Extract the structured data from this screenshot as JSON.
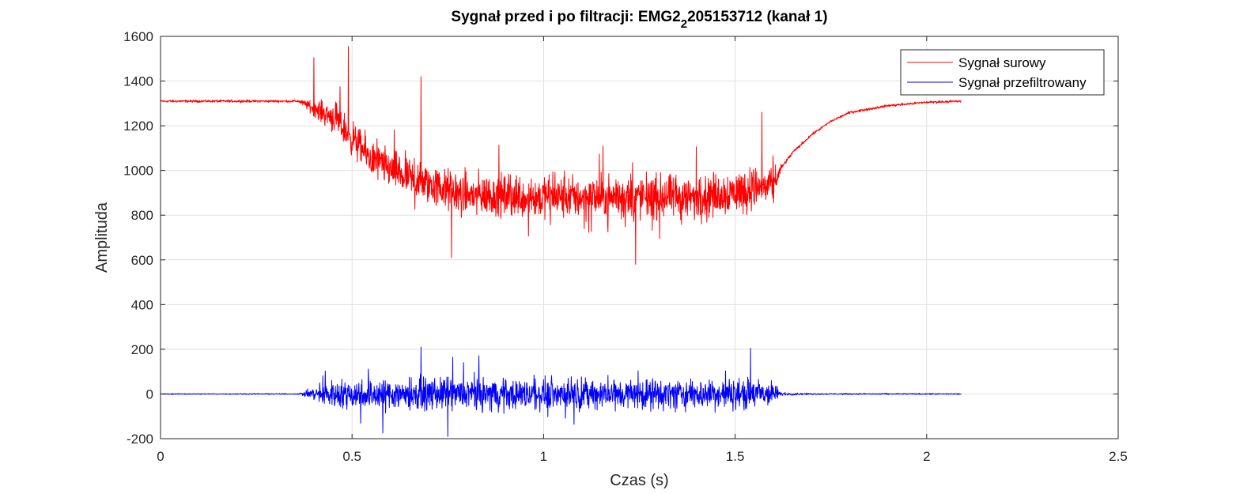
{
  "chart_data": {
    "type": "line",
    "title": {
      "main": "Sygnał przed i po filtracji: EMG2",
      "subscript": "2",
      "rest": "205153712 (kanał 1)"
    },
    "xlabel": "Czas (s)",
    "ylabel": "Amplituda",
    "xlim": [
      0,
      2.5
    ],
    "ylim": [
      -200,
      1600
    ],
    "xticks": [
      0,
      0.5,
      1,
      1.5,
      2,
      2.5
    ],
    "xtick_labels": [
      "0",
      "0.5",
      "1",
      "1.5",
      "2",
      "2.5"
    ],
    "yticks": [
      -200,
      0,
      200,
      400,
      600,
      800,
      1000,
      1200,
      1400,
      1600
    ],
    "ytick_labels": [
      "-200",
      "0",
      "200",
      "400",
      "600",
      "800",
      "1000",
      "1200",
      "1400",
      "1600"
    ],
    "grid": true,
    "legend_position": "top-right",
    "series": [
      {
        "name": "Sygnał surowy",
        "color": "#ff0000",
        "envelope": {
          "x": [
            0,
            0.36,
            0.45,
            0.55,
            0.65,
            0.8,
            1.0,
            1.2,
            1.4,
            1.55,
            1.6,
            1.62,
            1.65,
            1.7,
            1.75,
            1.8,
            1.9,
            2.0,
            2.09
          ],
          "baseline": [
            1310,
            1310,
            1240,
            1050,
            960,
            890,
            880,
            880,
            880,
            920,
            930,
            1010,
            1080,
            1160,
            1220,
            1260,
            1290,
            1305,
            1310
          ],
          "noise": [
            8,
            8,
            100,
            120,
            130,
            140,
            140,
            140,
            140,
            140,
            110,
            20,
            10,
            8,
            8,
            8,
            8,
            8,
            8
          ]
        },
        "peaks": [
          {
            "x": 0.4,
            "y": 1505
          },
          {
            "x": 0.49,
            "y": 1555
          },
          {
            "x": 0.68,
            "y": 1420
          },
          {
            "x": 1.24,
            "y": 580
          },
          {
            "x": 1.57,
            "y": 1260
          },
          {
            "x": 0.76,
            "y": 610
          }
        ]
      },
      {
        "name": "Sygnał przefiltrowany",
        "color": "#0000ff",
        "envelope": {
          "x": [
            0,
            0.36,
            0.45,
            0.6,
            0.8,
            1.0,
            1.2,
            1.4,
            1.55,
            1.6,
            1.62,
            1.7,
            2.09
          ],
          "baseline": [
            0,
            0,
            0,
            0,
            0,
            0,
            0,
            0,
            0,
            0,
            0,
            0,
            0
          ],
          "noise": [
            3,
            3,
            90,
            100,
            100,
            95,
            95,
            95,
            100,
            80,
            10,
            4,
            4
          ]
        },
        "peaks": [
          {
            "x": 0.68,
            "y": 210
          },
          {
            "x": 1.54,
            "y": 205
          },
          {
            "x": 0.75,
            "y": -190
          },
          {
            "x": 0.58,
            "y": -175
          }
        ]
      }
    ]
  }
}
